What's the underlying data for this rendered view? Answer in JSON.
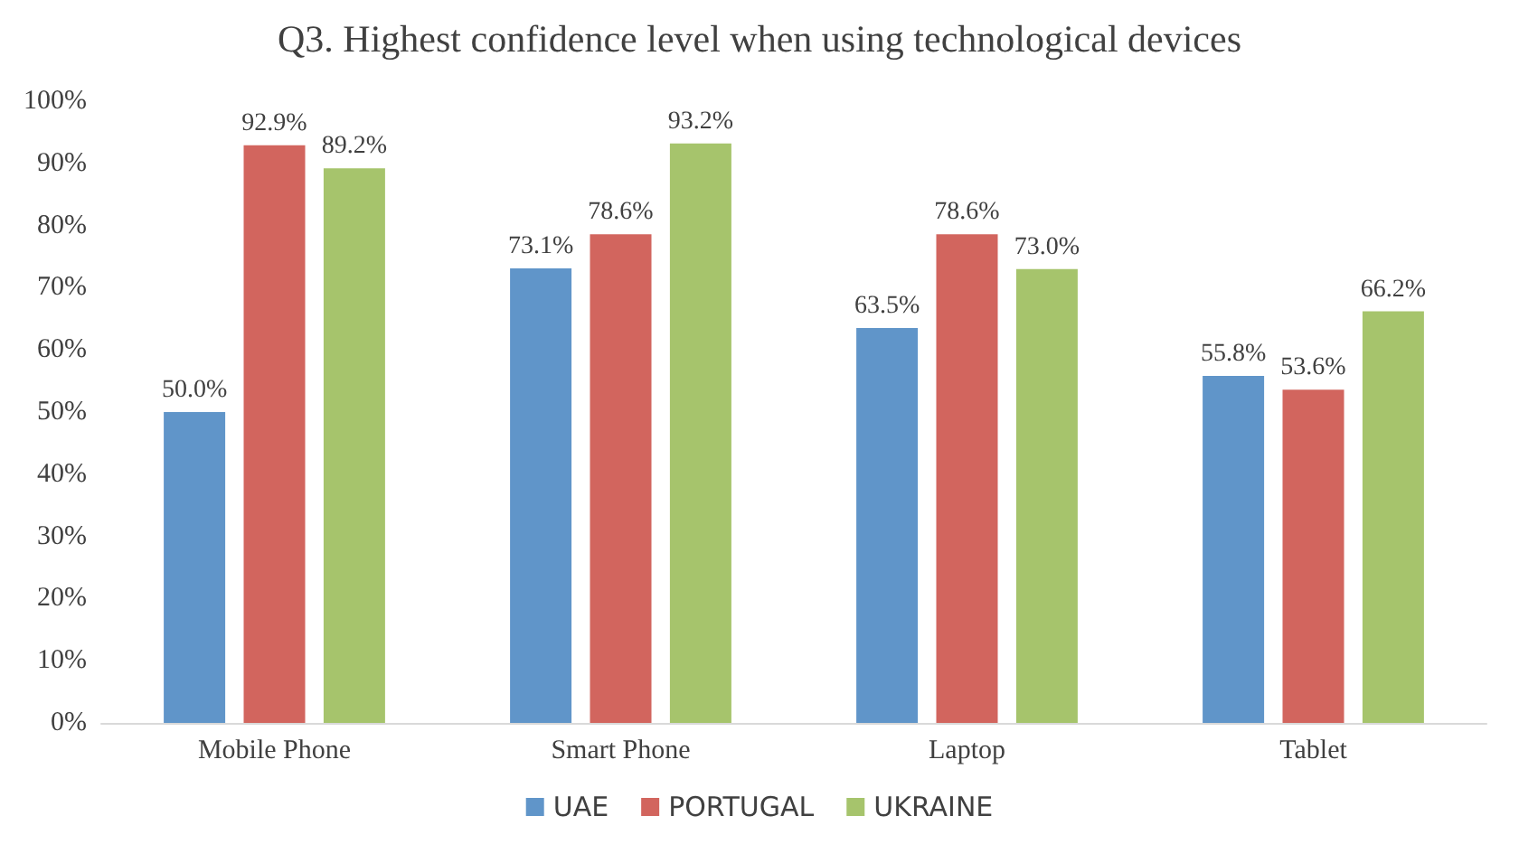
{
  "chart_data": {
    "type": "bar",
    "title": "Q3. Highest confidence level when using technological devices",
    "categories": [
      "Mobile Phone",
      "Smart Phone",
      "Laptop",
      "Tablet"
    ],
    "series": [
      {
        "name": "UAE",
        "color": "#6095c9",
        "values": [
          50.0,
          73.1,
          63.5,
          55.8
        ],
        "value_labels": [
          "50.0%",
          "73.1%",
          "63.5%",
          "55.8%"
        ]
      },
      {
        "name": "PORTUGAL",
        "color": "#d2655e",
        "values": [
          92.9,
          78.6,
          78.6,
          53.6
        ],
        "value_labels": [
          "92.9%",
          "78.6%",
          "78.6%",
          "53.6%"
        ]
      },
      {
        "name": "UKRAINE",
        "color": "#a6c46c",
        "values": [
          89.2,
          93.2,
          73.0,
          66.2
        ],
        "value_labels": [
          "89.2%",
          "93.2%",
          "73.0%",
          "66.2%"
        ]
      }
    ],
    "ylim": [
      0,
      100
    ],
    "yticks": [
      {
        "value": 0,
        "label": "0%"
      },
      {
        "value": 10,
        "label": "10%"
      },
      {
        "value": 20,
        "label": "20%"
      },
      {
        "value": 30,
        "label": "30%"
      },
      {
        "value": 40,
        "label": "40%"
      },
      {
        "value": 50,
        "label": "50%"
      },
      {
        "value": 60,
        "label": "60%"
      },
      {
        "value": 70,
        "label": "70%"
      },
      {
        "value": 80,
        "label": "80%"
      },
      {
        "value": 90,
        "label": "90%"
      },
      {
        "value": 100,
        "label": "100%"
      }
    ],
    "grid": false,
    "legend": "bottom"
  }
}
